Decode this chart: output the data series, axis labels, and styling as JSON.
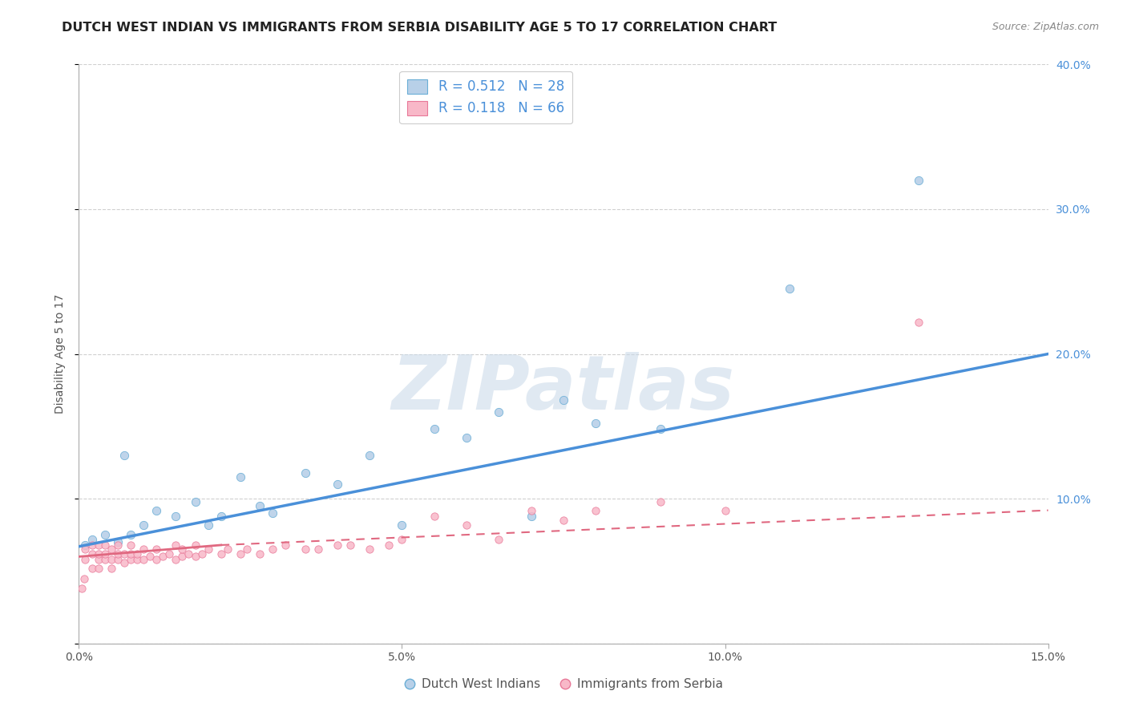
{
  "title": "DUTCH WEST INDIAN VS IMMIGRANTS FROM SERBIA DISABILITY AGE 5 TO 17 CORRELATION CHART",
  "source": "Source: ZipAtlas.com",
  "ylabel": "Disability Age 5 to 17",
  "xlim": [
    0.0,
    0.15
  ],
  "ylim": [
    0.0,
    0.4
  ],
  "xticks": [
    0.0,
    0.05,
    0.1,
    0.15
  ],
  "xtick_labels": [
    "0.0%",
    "5.0%",
    "10.0%",
    "15.0%"
  ],
  "yticks": [
    0.0,
    0.1,
    0.2,
    0.3,
    0.4
  ],
  "ytick_labels_right": [
    "",
    "10.0%",
    "20.0%",
    "30.0%",
    "40.0%"
  ],
  "blue_R": 0.512,
  "blue_N": 28,
  "pink_R": 0.118,
  "pink_N": 66,
  "blue_color": "#b8d0e8",
  "blue_edge_color": "#6aaed6",
  "blue_line_color": "#4a90d9",
  "pink_color": "#f8b8c8",
  "pink_edge_color": "#e87898",
  "pink_line_color": "#e06880",
  "legend_text_color": "#4a90d9",
  "right_tick_color": "#4a90d9",
  "blue_scatter_x": [
    0.001,
    0.002,
    0.004,
    0.006,
    0.007,
    0.008,
    0.01,
    0.012,
    0.015,
    0.018,
    0.02,
    0.022,
    0.025,
    0.028,
    0.03,
    0.035,
    0.04,
    0.045,
    0.05,
    0.055,
    0.06,
    0.065,
    0.07,
    0.075,
    0.08,
    0.09,
    0.11,
    0.13
  ],
  "blue_scatter_y": [
    0.068,
    0.072,
    0.075,
    0.07,
    0.13,
    0.075,
    0.082,
    0.092,
    0.088,
    0.098,
    0.082,
    0.088,
    0.115,
    0.095,
    0.09,
    0.118,
    0.11,
    0.13,
    0.082,
    0.148,
    0.142,
    0.16,
    0.088,
    0.168,
    0.152,
    0.148,
    0.245,
    0.32
  ],
  "blue_trend_x": [
    0.0,
    0.15
  ],
  "blue_trend_y": [
    0.067,
    0.2
  ],
  "pink_scatter_x": [
    0.0005,
    0.0008,
    0.001,
    0.001,
    0.002,
    0.002,
    0.002,
    0.003,
    0.003,
    0.003,
    0.003,
    0.004,
    0.004,
    0.004,
    0.005,
    0.005,
    0.005,
    0.006,
    0.006,
    0.006,
    0.007,
    0.007,
    0.008,
    0.008,
    0.008,
    0.009,
    0.009,
    0.01,
    0.01,
    0.011,
    0.012,
    0.012,
    0.013,
    0.014,
    0.015,
    0.015,
    0.016,
    0.016,
    0.017,
    0.018,
    0.018,
    0.019,
    0.02,
    0.022,
    0.023,
    0.025,
    0.026,
    0.028,
    0.03,
    0.032,
    0.035,
    0.037,
    0.04,
    0.042,
    0.045,
    0.048,
    0.05,
    0.055,
    0.06,
    0.065,
    0.07,
    0.075,
    0.08,
    0.09,
    0.1,
    0.13
  ],
  "pink_scatter_y": [
    0.038,
    0.045,
    0.058,
    0.065,
    0.052,
    0.062,
    0.068,
    0.052,
    0.058,
    0.062,
    0.068,
    0.058,
    0.062,
    0.068,
    0.052,
    0.058,
    0.065,
    0.058,
    0.062,
    0.068,
    0.056,
    0.062,
    0.058,
    0.062,
    0.068,
    0.058,
    0.062,
    0.058,
    0.065,
    0.06,
    0.058,
    0.065,
    0.06,
    0.062,
    0.058,
    0.068,
    0.06,
    0.065,
    0.062,
    0.068,
    0.06,
    0.062,
    0.065,
    0.062,
    0.065,
    0.062,
    0.065,
    0.062,
    0.065,
    0.068,
    0.065,
    0.065,
    0.068,
    0.068,
    0.065,
    0.068,
    0.072,
    0.088,
    0.082,
    0.072,
    0.092,
    0.085,
    0.092,
    0.098,
    0.092,
    0.222
  ],
  "pink_solid_trend_x": [
    0.0,
    0.022
  ],
  "pink_solid_trend_y": [
    0.06,
    0.068
  ],
  "pink_dashed_trend_x": [
    0.022,
    0.15
  ],
  "pink_dashed_trend_y": [
    0.068,
    0.092
  ],
  "watermark_text": "ZIPatlas",
  "legend_label_blue": "Dutch West Indians",
  "legend_label_pink": "Immigrants from Serbia",
  "grid_color": "#d0d0d0",
  "title_fontsize": 11.5,
  "tick_fontsize": 10,
  "ylabel_fontsize": 10
}
